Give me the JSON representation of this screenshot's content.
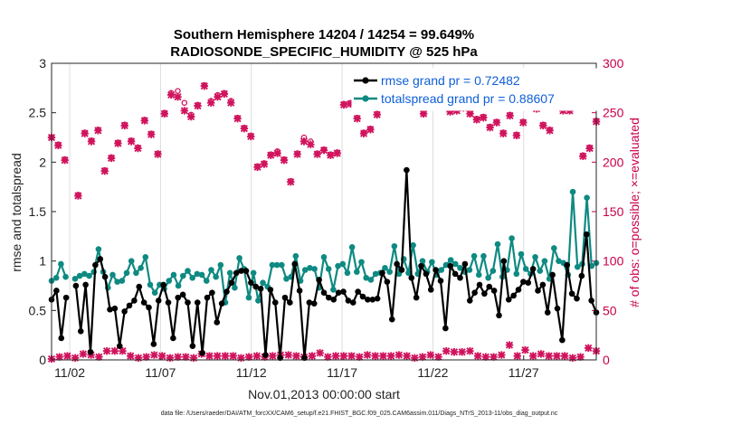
{
  "chart_data": {
    "type": "line",
    "title": "Southern Hemisphere 14204 / 14254 = 99.649%",
    "subtitle": "RADIOSONDE_SPECIFIC_HUMIDITY @ 525 hPa",
    "xlabel": "Nov.01,2013 00:00:00 start",
    "ylabel": "rmse and totalspread",
    "y2label": "# of obs: o=possible; ×=evaluated",
    "footnote": "data file: /Users/raeder/DAI/ATM_forcXX/CAM6_setup/f.e21.FHIST_BGC.f09_025.CAM6assim.011/Diags_NTrS_2013-11/obs_diag_output.nc",
    "xlim": [
      1,
      61
    ],
    "ylim": [
      0,
      3
    ],
    "y2lim": [
      0,
      300
    ],
    "x_tick_positions": [
      3,
      13,
      23,
      33,
      43,
      53
    ],
    "x_tick_labels": [
      "11/02",
      "11/07",
      "11/12",
      "11/17",
      "11/22",
      "11/27"
    ],
    "y_ticks": [
      0,
      0.5,
      1,
      1.5,
      2,
      2.5,
      3
    ],
    "y2_ticks": [
      0,
      50,
      100,
      150,
      200,
      250,
      300
    ],
    "legend": [
      "rmse grand pr = 0.72482",
      "totalspread grand pr = 0.88607"
    ],
    "colors": {
      "rmse": "#000000",
      "spread": "#0e8a82",
      "obs": "#d0135d",
      "legend_text": "#0f5fd8",
      "axis_right": "#c8004a"
    },
    "series": [
      {
        "name": "rmse",
        "axis": "left",
        "values": [
          0.61,
          0.7,
          0.22,
          0.63,
          null,
          0.75,
          0.29,
          0.76,
          0.08,
          0.96,
          1.02,
          0.84,
          0.51,
          0.52,
          0.14,
          0.49,
          0.55,
          0.6,
          0.74,
          0.58,
          0.53,
          0.16,
          0.6,
          0.76,
          0.58,
          0.22,
          0.63,
          0.66,
          0.58,
          0.14,
          0.58,
          0.07,
          0.63,
          0.68,
          0.38,
          0.57,
          0.69,
          0.78,
          0.88,
          0.9,
          0.9,
          0.78,
          0.74,
          0.72,
          0.05,
          0.71,
          0.58,
          0.02,
          0.63,
          0.58,
          0.97,
          0.7,
          0.02,
          0.58,
          0.57,
          0.81,
          0.68,
          0.63,
          0.61,
          0.68,
          0.69,
          0.6,
          0.58,
          0.69,
          0.64,
          0.61,
          0.61,
          0.62,
          0.88,
          0.79,
          0.41,
          0.97,
          0.91,
          1.92,
          0.83,
          0.63,
          0.95,
          0.87,
          0.71,
          0.91,
          0.8,
          0.32,
          0.95,
          0.87,
          0.83,
          0.97,
          0.6,
          0.68,
          0.76,
          0.67,
          0.74,
          0.7,
          0.45,
          1.0,
          0.61,
          0.65,
          0.71,
          0.79,
          0.78,
          0.92,
          0.7,
          0.76,
          0.48,
          0.86,
          0.52,
          0.2,
          0.96,
          0.67,
          0.62,
          0.85,
          1.27,
          0.6,
          0.48
        ]
      },
      {
        "name": "totalspread",
        "axis": "left",
        "values": [
          0.8,
          0.83,
          0.97,
          0.84,
          null,
          0.82,
          0.85,
          0.87,
          0.85,
          0.89,
          1.12,
          0.89,
          0.73,
          0.86,
          0.79,
          0.8,
          0.88,
          1.0,
          0.88,
          0.93,
          1.04,
          0.76,
          0.68,
          0.76,
          0.72,
          0.8,
          0.86,
          0.75,
          0.85,
          0.9,
          0.83,
          0.87,
          0.86,
          0.8,
          0.91,
          0.84,
          0.96,
          0.58,
          0.88,
          0.73,
          1.03,
          0.92,
          0.63,
          0.88,
          0.6,
          0.78,
          0.74,
          0.96,
          0.96,
          0.96,
          0.82,
          0.84,
          1.05,
          0.8,
          0.91,
          0.93,
          0.92,
          0.73,
          1.04,
          0.92,
          0.71,
          0.95,
          0.97,
          0.88,
          1.14,
          0.89,
          0.99,
          0.83,
          0.81,
          0.87,
          0.88,
          0.93,
          0.89,
          1.15,
          0.87,
          1.02,
          0.88,
          1.16,
          0.87,
          1.0,
          0.89,
          0.99,
          0.86,
          0.91,
          0.96,
          1.01,
          0.97,
          0.93,
          0.89,
          0.91,
          1.05,
          0.86,
          1.05,
          0.83,
          0.9,
          1.17,
          0.84,
          0.91,
          1.23,
          0.87,
          1.07,
          0.92,
          0.87,
          1.04,
          0.9,
          1.0,
          0.82,
          1.13,
          1.0,
          0.98,
          0.86,
          1.7,
          0.94,
          0.97,
          1.64,
          0.95,
          0.98
        ]
      },
      {
        "name": "obs possible",
        "axis": "right",
        "marker": "o",
        "values": [
          225,
          218,
          203,
          null,
          167,
          230,
          222,
          233,
          192,
          205,
          220,
          238,
          222,
          215,
          243,
          229,
          209,
          250,
          270,
          272,
          260,
          248,
          258,
          278,
          262,
          268,
          270,
          262,
          245,
          235,
          227,
          196,
          199,
          208,
          211,
          203,
          181,
          209,
          225,
          221,
          209,
          213,
          208,
          210,
          259,
          260,
          245,
          230,
          234,
          249,
          261,
          264,
          266,
          260,
          263,
          259,
          250,
          264,
          268,
          257,
          252,
          253,
          256,
          250,
          244,
          246,
          236,
          241,
          230,
          248,
          228,
          241,
          259,
          255,
          238,
          233,
          257,
          253,
          253,
          257,
          207,
          215,
          242
        ]
      },
      {
        "name": "obs evaluated",
        "axis": "right",
        "marker": "x",
        "values": [
          225,
          217,
          202,
          null,
          166,
          229,
          221,
          232,
          191,
          204,
          219,
          237,
          221,
          214,
          242,
          228,
          208,
          249,
          268,
          266,
          252,
          246,
          257,
          277,
          260,
          266,
          269,
          260,
          244,
          234,
          226,
          195,
          198,
          207,
          209,
          202,
          180,
          208,
          221,
          218,
          208,
          212,
          207,
          209,
          258,
          259,
          244,
          229,
          233,
          248,
          260,
          263,
          265,
          259,
          262,
          258,
          249,
          263,
          267,
          256,
          251,
          252,
          255,
          249,
          243,
          245,
          235,
          240,
          229,
          247,
          227,
          240,
          258,
          254,
          237,
          232,
          256,
          252,
          252,
          256,
          206,
          214,
          241
        ]
      },
      {
        "name": "obs rejected",
        "axis": "right",
        "marker": "x",
        "values": [
          1,
          3,
          4,
          2,
          6,
          5,
          3,
          9,
          9,
          9,
          4,
          2,
          3,
          5,
          4,
          2,
          3,
          3,
          2,
          6,
          4,
          4,
          4,
          4,
          2,
          3,
          4,
          3,
          4,
          5,
          5,
          4,
          3,
          4,
          7,
          3,
          4,
          4,
          4,
          3,
          5,
          4,
          4,
          4,
          5,
          4,
          2,
          3,
          5,
          3,
          9,
          8,
          8,
          9,
          4,
          3,
          3,
          5,
          15,
          4,
          10,
          4,
          6,
          4,
          4,
          4,
          2,
          3,
          12,
          9
        ]
      }
    ]
  }
}
